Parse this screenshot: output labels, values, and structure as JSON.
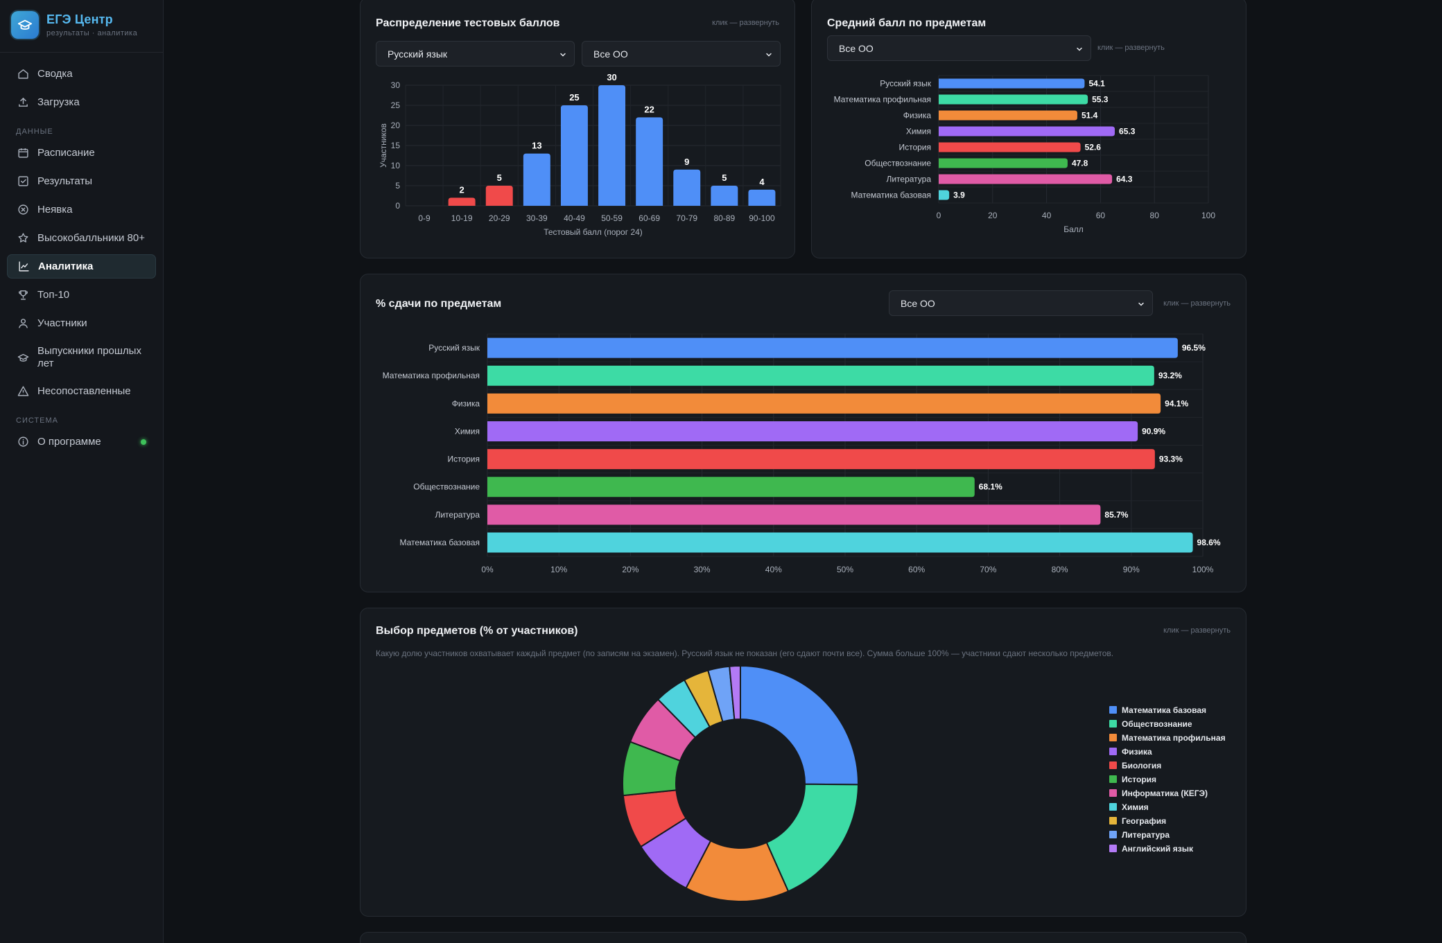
{
  "brand": {
    "title": "ЕГЭ Центр",
    "subtitle": "результаты · аналитика"
  },
  "sidebar": {
    "items_top": [
      {
        "label": "Сводка",
        "icon": "home-icon"
      },
      {
        "label": "Загрузка",
        "icon": "upload-icon"
      }
    ],
    "section_data": "ДАННЫЕ",
    "items_data": [
      {
        "label": "Расписание",
        "icon": "calendar-icon"
      },
      {
        "label": "Результаты",
        "icon": "check-square-icon"
      },
      {
        "label": "Неявка",
        "icon": "x-circle-icon"
      },
      {
        "label": "Высокобалльники 80+",
        "icon": "star-icon"
      },
      {
        "label": "Аналитика",
        "icon": "chart-line-icon",
        "active": true
      },
      {
        "label": "Топ-10",
        "icon": "trophy-icon"
      },
      {
        "label": "Участники",
        "icon": "user-icon"
      },
      {
        "label": "Выпускники прошлых лет",
        "icon": "graduation-cap-icon"
      },
      {
        "label": "Несопоставленные",
        "icon": "warning-icon"
      }
    ],
    "section_system": "СИСТЕМА",
    "items_system": [
      {
        "label": "О программе",
        "icon": "info-icon"
      }
    ],
    "status_color": "#3ec25a"
  },
  "expand_hint": "клик — развернуть",
  "dist": {
    "title": "Распределение тестовых баллов",
    "subject_select": "Русский язык",
    "school_select": "Все ОО"
  },
  "avg": {
    "title": "Средний балл по предметам",
    "school_select": "Все ОО"
  },
  "pass": {
    "title": "% сдачи по предметам",
    "school_select": "Все ОО"
  },
  "choice": {
    "title": "Выбор предметов (% от участников)",
    "description": "Какую долю участников охватывает каждый предмет (по записям на экзамен). Русский язык не показан (его сдают почти все). Сумма больше 100% — участники сдают несколько предметов."
  },
  "chart_data": [
    {
      "id": "dist",
      "type": "bar",
      "categories": [
        "0-9",
        "10-19",
        "20-29",
        "30-39",
        "40-49",
        "50-59",
        "60-69",
        "70-79",
        "80-89",
        "90-100"
      ],
      "values": [
        0,
        2,
        5,
        13,
        25,
        30,
        22,
        9,
        5,
        4
      ],
      "colors": [
        "#f04a4a",
        "#f04a4a",
        "#f04a4a",
        "#4f8ff7",
        "#4f8ff7",
        "#4f8ff7",
        "#4f8ff7",
        "#4f8ff7",
        "#4f8ff7",
        "#4f8ff7"
      ],
      "xlabel": "Тестовый балл (порог 24)",
      "ylabel": "Участников",
      "ylim": [
        0,
        30
      ],
      "yticks": [
        0,
        5,
        10,
        15,
        20,
        25,
        30
      ],
      "grid": true
    },
    {
      "id": "avg",
      "type": "bar",
      "orientation": "horizontal",
      "categories": [
        "Русский язык",
        "Математика профильная",
        "Физика",
        "Химия",
        "История",
        "Обществознание",
        "Литература",
        "Математика базовая"
      ],
      "values": [
        54.1,
        55.3,
        51.4,
        65.3,
        52.6,
        47.8,
        64.3,
        3.9
      ],
      "value_labels": [
        "54.1",
        "55.3",
        "51.4",
        "65.3",
        "52.6",
        "47.8",
        "64.3",
        "3.9"
      ],
      "colors": [
        "#4f8ff7",
        "#3ddba5",
        "#f28b3a",
        "#a06af5",
        "#f04a4a",
        "#3fb84f",
        "#e05ba6",
        "#4fd3dd"
      ],
      "xlabel": "Балл",
      "xlim": [
        0,
        100
      ],
      "xticks": [
        0,
        20,
        40,
        60,
        80,
        100
      ],
      "grid": true
    },
    {
      "id": "pass",
      "type": "bar",
      "orientation": "horizontal",
      "categories": [
        "Русский язык",
        "Математика профильная",
        "Физика",
        "Химия",
        "История",
        "Обществознание",
        "Литература",
        "Математика базовая"
      ],
      "values": [
        96.5,
        93.2,
        94.1,
        90.9,
        93.3,
        68.1,
        85.7,
        98.6
      ],
      "value_labels": [
        "96.5%",
        "93.2%",
        "94.1%",
        "90.9%",
        "93.3%",
        "68.1%",
        "85.7%",
        "98.6%"
      ],
      "colors": [
        "#4f8ff7",
        "#3ddba5",
        "#f28b3a",
        "#a06af5",
        "#f04a4a",
        "#3fb84f",
        "#e05ba6",
        "#4fd3dd"
      ],
      "xlim": [
        0,
        100
      ],
      "xticks": [
        "0%",
        "10%",
        "20%",
        "30%",
        "40%",
        "50%",
        "60%",
        "70%",
        "80%",
        "90%",
        "100%"
      ],
      "grid": true
    },
    {
      "id": "choice",
      "type": "pie",
      "donut": true,
      "labels": [
        "Математика базовая",
        "Обществознание",
        "Математика профильная",
        "Физика",
        "Биология",
        "История",
        "Информатика (КЕГЭ)",
        "Химия",
        "География",
        "Литература",
        "Английский язык"
      ],
      "values": [
        25.5,
        18.5,
        14.5,
        8.5,
        7.5,
        7.5,
        7.0,
        4.5,
        3.5,
        3.0,
        1.5
      ],
      "colors": [
        "#4f8ff7",
        "#3ddba5",
        "#f28b3a",
        "#a06af5",
        "#f04a4a",
        "#3fb84f",
        "#e05ba6",
        "#4fd3dd",
        "#e5b53a",
        "#6fa3f7",
        "#b37af5"
      ],
      "legend": "right"
    }
  ]
}
